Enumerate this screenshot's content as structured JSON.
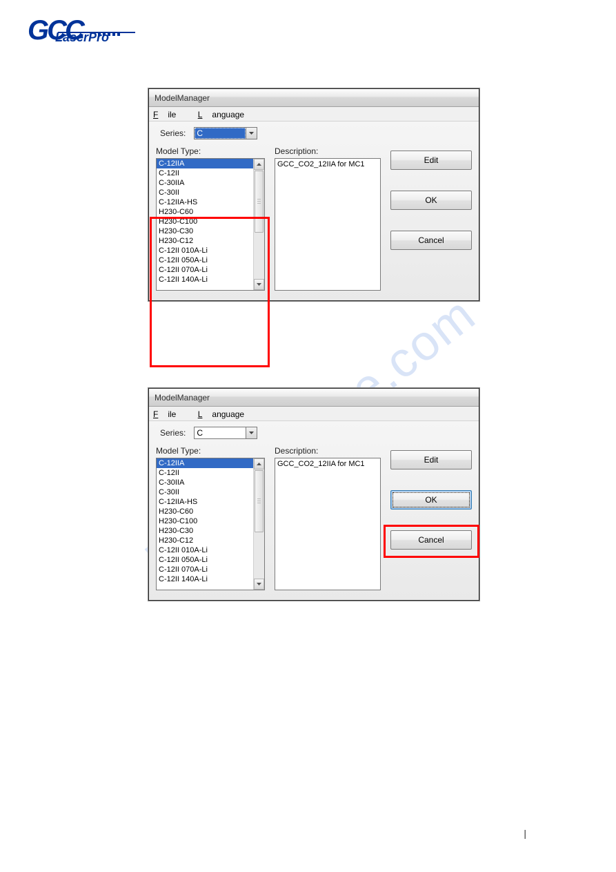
{
  "logo": {
    "brand": "GCC",
    "sub": "LaserPro"
  },
  "watermark": "manualshive.com",
  "dialog": {
    "title": "ModelManager",
    "menu": {
      "file": "File",
      "language": "Language"
    },
    "series_label": "Series:",
    "series_value": "C",
    "model_type_label": "Model Type:",
    "description_label": "Description:",
    "description_value": "GCC_CO2_12IIA for MC1",
    "items": [
      "C-12IIA",
      "C-12II",
      "C-30IIA",
      "C-30II",
      "C-12IIA-HS",
      "H230-C60",
      "H230-C100",
      "H230-C30",
      "H230-C12",
      "C-12II 010A-Li",
      "C-12II 050A-Li",
      "C-12II 070A-Li",
      "C-12II 140A-Li"
    ],
    "buttons": {
      "edit": "Edit",
      "ok": "OK",
      "cancel": "Cancel"
    }
  },
  "colors": {
    "highlight_bg": "#316ac5",
    "highlight_fg": "#ffffff",
    "annotation_red": "#ff0000",
    "logo_blue": "#003399"
  }
}
